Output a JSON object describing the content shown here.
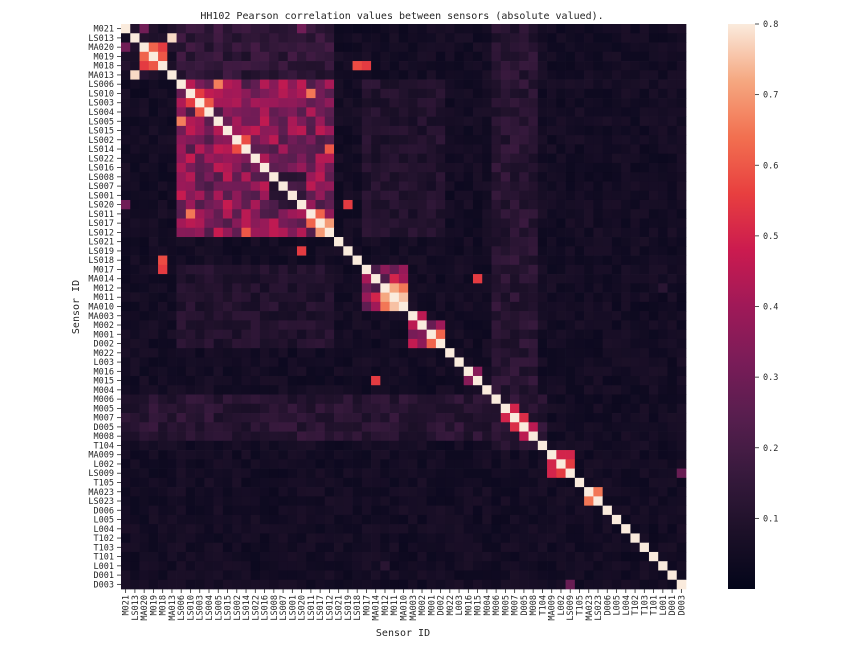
{
  "chart_data": {
    "type": "heatmap",
    "title": "HH102 Pearson correlation values between sensors (absolute valued).",
    "xlabel": "Sensor ID",
    "ylabel": "Sensor ID",
    "sensors": [
      "M021",
      "LS013",
      "MA020",
      "M019",
      "M018",
      "MA013",
      "LS006",
      "LS010",
      "LS003",
      "LS004",
      "LS005",
      "LS015",
      "LS002",
      "LS014",
      "LS022",
      "LS016",
      "LS008",
      "LS007",
      "LS001",
      "LS020",
      "LS011",
      "LS017",
      "LS012",
      "LS021",
      "LS019",
      "LS018",
      "M017",
      "MA014",
      "M012",
      "M011",
      "MA010",
      "MA003",
      "M002",
      "M001",
      "D002",
      "M022",
      "L003",
      "M016",
      "M015",
      "M004",
      "M006",
      "M005",
      "M007",
      "D005",
      "M008",
      "T104",
      "MA009",
      "L002",
      "LS009",
      "T105",
      "MA023",
      "LS023",
      "D006",
      "L005",
      "L004",
      "T102",
      "T103",
      "T101",
      "L001",
      "D001",
      "D003"
    ],
    "x_tick_labels": [
      "M021",
      "LS013",
      "MA020",
      "M019",
      "M018",
      "MA013",
      "LS006",
      "LS010",
      "LS003",
      "LS004",
      "LS005",
      "LS015",
      "LS002",
      "LS014",
      "LS022",
      "LS016",
      "LS008",
      "LS007",
      "LS001",
      "LS020",
      "LS011",
      "LS017",
      "LS012",
      "LS021",
      "LS019",
      "LS018",
      "M017",
      "MA014",
      "M012",
      "M011",
      "MA010",
      "MA003",
      "M002",
      "M001",
      "D002",
      "M022",
      "L003",
      "M016",
      "M015",
      "M004",
      "M006",
      "M005",
      "M007",
      "D005",
      "M008",
      "T104",
      "MA009",
      "L002",
      "LS009",
      "T105",
      "MA023",
      "LS023",
      "D006",
      "L005",
      "L004",
      "T102",
      "T103",
      "T101",
      "L001",
      "D001",
      "D003"
    ],
    "y_tick_labels": [
      "M021",
      "LS013",
      "MA020",
      "M019",
      "M018",
      "MA013",
      "LS006",
      "LS010",
      "LS003",
      "LS004",
      "LS005",
      "LS015",
      "LS002",
      "LS014",
      "LS022",
      "LS016",
      "LS008",
      "LS007",
      "LS001",
      "LS020",
      "LS011",
      "LS017",
      "LS012",
      "LS021",
      "LS019",
      "LS018",
      "M017",
      "MA014",
      "M012",
      "M011",
      "MA010",
      "MA003",
      "M002",
      "M001",
      "D002",
      "M022",
      "L003",
      "M016",
      "M015",
      "M004",
      "M006",
      "M005",
      "M007",
      "D005",
      "M008",
      "T104",
      "MA009",
      "L002",
      "LS009",
      "T105",
      "MA023",
      "LS023",
      "D006",
      "L005",
      "L004",
      "T102",
      "T103",
      "T101",
      "L001",
      "D001",
      "D003"
    ],
    "colorbar": {
      "min": 0,
      "max": 0.8,
      "ticks": [
        "0.1",
        "0.2",
        "0.3",
        "0.4",
        "0.5",
        "0.6",
        "0.7",
        "0.8"
      ],
      "tick_values": [
        0.1,
        0.2,
        0.3,
        0.4,
        0.5,
        0.6,
        0.7,
        0.8
      ]
    },
    "colors": {
      "low": "#03051a",
      "high": "#faebdd"
    },
    "diagonal_value": 0.8,
    "background_level": 0.03,
    "blocks": [
      {
        "rows": [
          6,
          22
        ],
        "cols": [
          6,
          22
        ],
        "value": 0.34
      },
      {
        "rows": [
          0,
          5
        ],
        "cols": [
          0,
          5
        ],
        "value": 0.08
      },
      {
        "rows": [
          0,
          5
        ],
        "cols": [
          6,
          22
        ],
        "value": 0.14
      },
      {
        "rows": [
          16,
          19
        ],
        "cols": [
          16,
          19
        ],
        "value": 0.16
      },
      {
        "rows": [
          26,
          30
        ],
        "cols": [
          26,
          30
        ],
        "value": 0.3
      },
      {
        "rows": [
          32,
          34
        ],
        "cols": [
          31,
          34
        ],
        "value": 0.36
      },
      {
        "rows": [
          40,
          44
        ],
        "cols": [
          40,
          44
        ],
        "value": 0.2
      },
      {
        "rows": [
          46,
          48
        ],
        "cols": [
          46,
          48
        ],
        "value": 0.3
      },
      {
        "rows": [
          50,
          51
        ],
        "cols": [
          50,
          51
        ],
        "value": 0.55
      },
      {
        "rows": [
          0,
          45
        ],
        "cols": [
          40,
          44
        ],
        "value": 0.12
      },
      {
        "rows": [
          40,
          44
        ],
        "cols": [
          0,
          45
        ],
        "value": 0.12
      },
      {
        "rows": [
          6,
          22
        ],
        "cols": [
          26,
          34
        ],
        "value": 0.1
      },
      {
        "rows": [
          26,
          34
        ],
        "cols": [
          6,
          22
        ],
        "value": 0.1
      }
    ],
    "cells": [
      {
        "r": 1,
        "c": 5,
        "value": 0.78
      },
      {
        "r": 5,
        "c": 1,
        "value": 0.78
      },
      {
        "r": 2,
        "c": 3,
        "value": 0.62
      },
      {
        "r": 3,
        "c": 2,
        "value": 0.62
      },
      {
        "r": 2,
        "c": 4,
        "value": 0.55
      },
      {
        "r": 4,
        "c": 2,
        "value": 0.55
      },
      {
        "r": 3,
        "c": 4,
        "value": 0.6
      },
      {
        "r": 4,
        "c": 3,
        "value": 0.6
      },
      {
        "r": 0,
        "c": 2,
        "value": 0.3
      },
      {
        "r": 2,
        "c": 0,
        "value": 0.3
      },
      {
        "r": 7,
        "c": 8,
        "value": 0.55
      },
      {
        "r": 8,
        "c": 7,
        "value": 0.55
      },
      {
        "r": 8,
        "c": 9,
        "value": 0.6
      },
      {
        "r": 9,
        "c": 8,
        "value": 0.6
      },
      {
        "r": 10,
        "c": 6,
        "value": 0.66
      },
      {
        "r": 6,
        "c": 10,
        "value": 0.66
      },
      {
        "r": 12,
        "c": 13,
        "value": 0.58
      },
      {
        "r": 13,
        "c": 12,
        "value": 0.58
      },
      {
        "r": 20,
        "c": 21,
        "value": 0.62
      },
      {
        "r": 21,
        "c": 20,
        "value": 0.62
      },
      {
        "r": 21,
        "c": 22,
        "value": 0.7
      },
      {
        "r": 22,
        "c": 21,
        "value": 0.7
      },
      {
        "r": 20,
        "c": 7,
        "value": 0.65
      },
      {
        "r": 7,
        "c": 20,
        "value": 0.65
      },
      {
        "r": 22,
        "c": 13,
        "value": 0.6
      },
      {
        "r": 13,
        "c": 22,
        "value": 0.6
      },
      {
        "r": 19,
        "c": 0,
        "value": 0.3
      },
      {
        "r": 0,
        "c": 19,
        "value": 0.3
      },
      {
        "r": 24,
        "c": 19,
        "value": 0.55
      },
      {
        "r": 19,
        "c": 24,
        "value": 0.55
      },
      {
        "r": 4,
        "c": 26,
        "value": 0.55
      },
      {
        "r": 26,
        "c": 4,
        "value": 0.55
      },
      {
        "r": 4,
        "c": 25,
        "value": 0.58
      },
      {
        "r": 25,
        "c": 4,
        "value": 0.58
      },
      {
        "r": 28,
        "c": 29,
        "value": 0.72
      },
      {
        "r": 29,
        "c": 28,
        "value": 0.72
      },
      {
        "r": 29,
        "c": 30,
        "value": 0.75
      },
      {
        "r": 30,
        "c": 29,
        "value": 0.75
      },
      {
        "r": 28,
        "c": 30,
        "value": 0.65
      },
      {
        "r": 30,
        "c": 28,
        "value": 0.65
      },
      {
        "r": 27,
        "c": 29,
        "value": 0.5
      },
      {
        "r": 29,
        "c": 27,
        "value": 0.5
      },
      {
        "r": 27,
        "c": 38,
        "value": 0.55
      },
      {
        "r": 38,
        "c": 27,
        "value": 0.55
      },
      {
        "r": 31,
        "c": 32,
        "value": 0.45
      },
      {
        "r": 32,
        "c": 31,
        "value": 0.45
      },
      {
        "r": 33,
        "c": 34,
        "value": 0.62
      },
      {
        "r": 34,
        "c": 33,
        "value": 0.62
      },
      {
        "r": 37,
        "c": 38,
        "value": 0.35
      },
      {
        "r": 38,
        "c": 37,
        "value": 0.35
      },
      {
        "r": 41,
        "c": 42,
        "value": 0.5
      },
      {
        "r": 42,
        "c": 41,
        "value": 0.5
      },
      {
        "r": 42,
        "c": 43,
        "value": 0.52
      },
      {
        "r": 43,
        "c": 42,
        "value": 0.52
      },
      {
        "r": 43,
        "c": 44,
        "value": 0.45
      },
      {
        "r": 44,
        "c": 43,
        "value": 0.45
      },
      {
        "r": 46,
        "c": 47,
        "value": 0.5
      },
      {
        "r": 47,
        "c": 46,
        "value": 0.5
      },
      {
        "r": 47,
        "c": 48,
        "value": 0.55
      },
      {
        "r": 48,
        "c": 47,
        "value": 0.55
      },
      {
        "r": 46,
        "c": 48,
        "value": 0.5
      },
      {
        "r": 48,
        "c": 46,
        "value": 0.5
      },
      {
        "r": 50,
        "c": 51,
        "value": 0.65
      },
      {
        "r": 51,
        "c": 50,
        "value": 0.65
      },
      {
        "r": 48,
        "c": 60,
        "value": 0.28
      },
      {
        "r": 60,
        "c": 48,
        "value": 0.28
      },
      {
        "r": 28,
        "c": 58,
        "value": 0.12
      },
      {
        "r": 58,
        "c": 28,
        "value": 0.12
      }
    ]
  }
}
